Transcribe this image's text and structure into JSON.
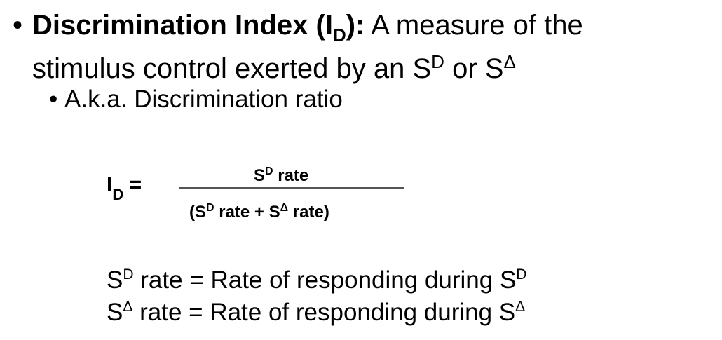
{
  "bullet_char": "•",
  "title": {
    "term_bold": "Discrimination Index (I",
    "term_sub": "D",
    "term_close": "):",
    "desc_line1": " A measure of the",
    "desc_line2_pre": "stimulus control exerted by an S",
    "desc_sup1": "D",
    "desc_mid": " or S",
    "desc_sup2": "Δ"
  },
  "subbullet": {
    "text": "A.k.a. Discrimination ratio"
  },
  "formula": {
    "lhs_main": "I",
    "lhs_sub": "D",
    "lhs_eq": " =",
    "numerator": {
      "s": "S",
      "sup": "D",
      "rest": " rate"
    },
    "denominator": {
      "open": "(S",
      "sup1": "D",
      "mid": " rate + S",
      "sup2": "Δ",
      "close": " rate)"
    }
  },
  "definitions": [
    {
      "s": "S",
      "sup": "D",
      "text": " rate = Rate of responding during S",
      "end_sup": "D"
    },
    {
      "s": "S",
      "sup": "Δ",
      "text": " rate = Rate of responding during S",
      "end_sup": "Δ"
    }
  ]
}
